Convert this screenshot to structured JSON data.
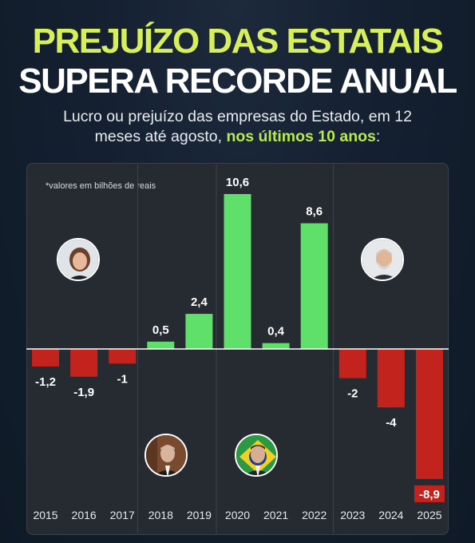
{
  "header": {
    "title_line1": "PREJUÍZO DAS ESTATAIS",
    "title_line2": "SUPERA RECORDE ANUAL",
    "subtitle_line1": "Lucro ou prejuízo das empresas do Estado, em 12",
    "subtitle_line2_a": "meses até agosto, ",
    "subtitle_line2_highlight": "nos últimos 10 anos",
    "subtitle_line2_b": ":"
  },
  "note": "*valores em bilhões de reais",
  "colors": {
    "positive": "#5fe06a",
    "negative": "#c2231d",
    "title_accent": "#d6ef5a",
    "panel": "#262b31"
  },
  "portraits": [
    {
      "name_icon": "portrait-left-upper-icon"
    },
    {
      "name_icon": "portrait-left-lower-icon"
    },
    {
      "name_icon": "portrait-middle-lower-icon"
    },
    {
      "name_icon": "portrait-right-upper-icon"
    }
  ],
  "chart_data": {
    "type": "bar",
    "categories": [
      "2015",
      "2016",
      "2017",
      "2018",
      "2019",
      "2020",
      "2021",
      "2022",
      "2023",
      "2024",
      "2025"
    ],
    "values": [
      -1.2,
      -1.9,
      -1,
      0.5,
      2.4,
      10.6,
      0.4,
      8.6,
      -2,
      -4,
      -8.9
    ],
    "labels": [
      "-1,2",
      "-1,9",
      "-1",
      "0,5",
      "2,4",
      "10,6",
      "0,4",
      "8,6",
      "-2",
      "-4",
      "-8,9"
    ],
    "ylim": [
      -8.9,
      10.6
    ],
    "grid": false,
    "title": "",
    "xlabel": "",
    "ylabel": ""
  }
}
